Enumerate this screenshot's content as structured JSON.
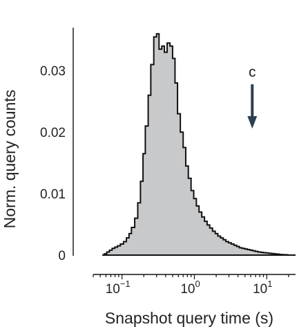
{
  "chart_data": {
    "type": "area",
    "title": "",
    "xlabel": "Snapshot query time (s)",
    "ylabel": "Norm. query counts",
    "x_scale": "log",
    "xlim": [
      0.04,
      25
    ],
    "ylim": [
      0,
      0.037
    ],
    "x_ticks": [
      {
        "value": 0.1,
        "base": "10",
        "exp": "−1"
      },
      {
        "value": 1,
        "base": "10",
        "exp": "0"
      },
      {
        "value": 10,
        "base": "10",
        "exp": "1"
      }
    ],
    "y_ticks": [
      {
        "value": 0,
        "label": "0"
      },
      {
        "value": 0.01,
        "label": "0.01"
      },
      {
        "value": 0.02,
        "label": "0.02"
      },
      {
        "value": 0.03,
        "label": "0.03"
      }
    ],
    "grid": false,
    "series": [
      {
        "fill_color": "#c8c9cb",
        "line_color": "#111111",
        "x": [
          0.059,
          0.064,
          0.07,
          0.076,
          0.083,
          0.09,
          0.1,
          0.11,
          0.12,
          0.13,
          0.14,
          0.16,
          0.17,
          0.19,
          0.2,
          0.22,
          0.24,
          0.26,
          0.29,
          0.31,
          0.34,
          0.37,
          0.4,
          0.44,
          0.48,
          0.52,
          0.56,
          0.61,
          0.67,
          0.73,
          0.79,
          0.86,
          0.94,
          1.02,
          1.11,
          1.21,
          1.32,
          1.44,
          1.56,
          1.7,
          1.86,
          2.02,
          2.2,
          2.4,
          2.61,
          2.84,
          3.1,
          3.37,
          3.67,
          4.0,
          4.36,
          4.75,
          5.17,
          5.63,
          6.13,
          6.67,
          7.27,
          7.91,
          8.62,
          9.38,
          10.2,
          11.1,
          12.1,
          13.2,
          14.4,
          15.7,
          17.1,
          18.6,
          20.2
        ],
        "y": [
          0.0002,
          0.0005,
          0.0008,
          0.0011,
          0.0013,
          0.0015,
          0.0018,
          0.0022,
          0.0028,
          0.0035,
          0.0045,
          0.006,
          0.0085,
          0.012,
          0.0165,
          0.021,
          0.026,
          0.031,
          0.0355,
          0.036,
          0.0335,
          0.034,
          0.033,
          0.0345,
          0.034,
          0.032,
          0.028,
          0.023,
          0.02,
          0.0175,
          0.0145,
          0.0125,
          0.0105,
          0.0092,
          0.008,
          0.007,
          0.0062,
          0.0055,
          0.0049,
          0.0044,
          0.0039,
          0.0035,
          0.0031,
          0.0028,
          0.0025,
          0.0022,
          0.002,
          0.0018,
          0.0016,
          0.0014,
          0.0012,
          0.0011,
          0.001,
          0.0009,
          0.0008,
          0.0007,
          0.0006,
          0.0005,
          0.00045,
          0.0004,
          0.00035,
          0.0003,
          0.00025,
          0.0002,
          0.00015,
          0.0001,
          7e-05,
          5e-05,
          2e-05
        ]
      }
    ],
    "annotations": [
      {
        "text": "c",
        "x": 6.3,
        "type": "downward-arrow",
        "color": "#2d3f52"
      }
    ]
  }
}
